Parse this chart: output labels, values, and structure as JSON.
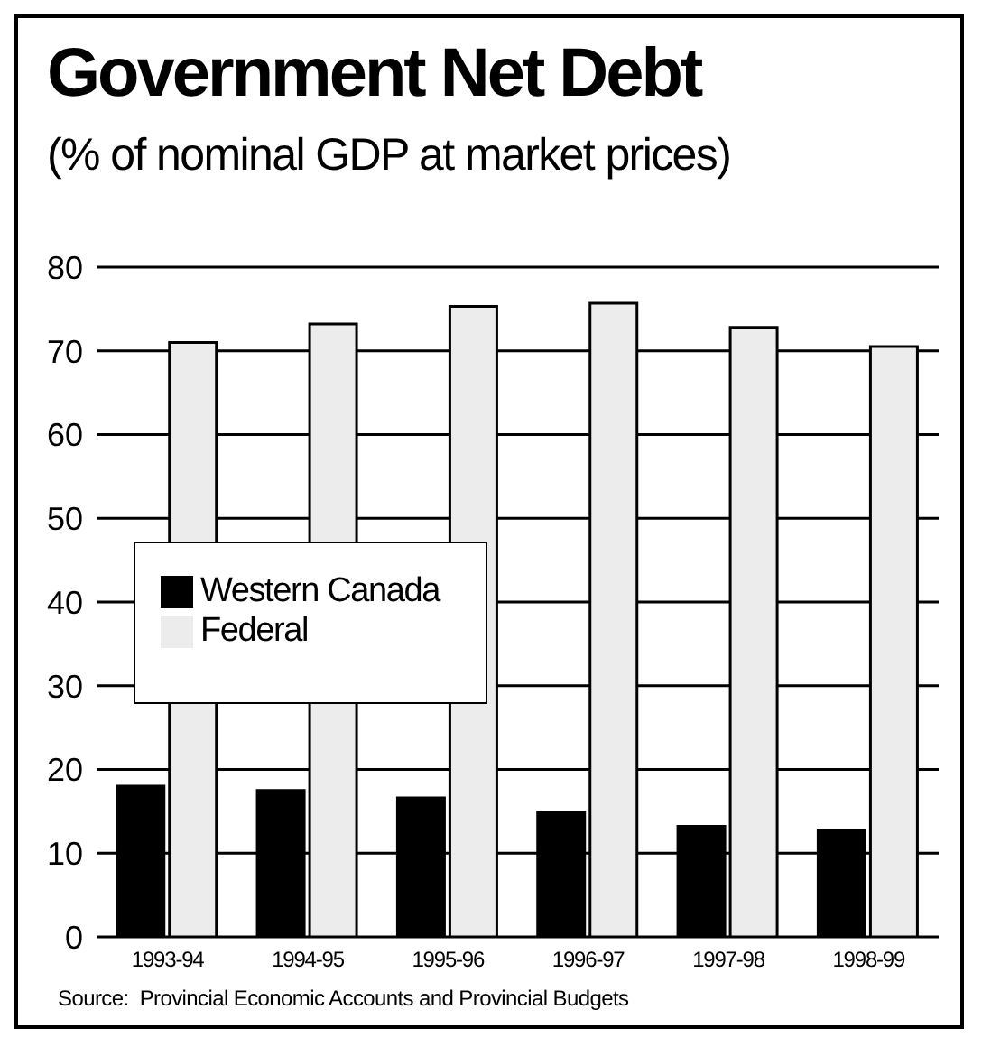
{
  "chart_data": {
    "type": "bar",
    "title": "Government Net Debt",
    "subtitle": "(% of nominal GDP at market prices)",
    "categories": [
      "1993-94",
      "1994-95",
      "1995-96",
      "1996-97",
      "1997-98",
      "1998-99"
    ],
    "series": [
      {
        "name": "Western Canada",
        "color": "#000000",
        "values": [
          18,
          17.5,
          16.6,
          14.9,
          13.2,
          12.7
        ]
      },
      {
        "name": "Federal",
        "color": "#ececec",
        "values": [
          71,
          73.2,
          75.3,
          75.7,
          72.8,
          70.5
        ]
      }
    ],
    "ylim": [
      0,
      80
    ],
    "yticks": [
      0,
      10,
      20,
      30,
      40,
      50,
      60,
      70,
      80
    ],
    "grid": "y",
    "legend": "left",
    "annotations": [
      "Source:  Provincial Economic Accounts and Provincial Budgets"
    ]
  }
}
